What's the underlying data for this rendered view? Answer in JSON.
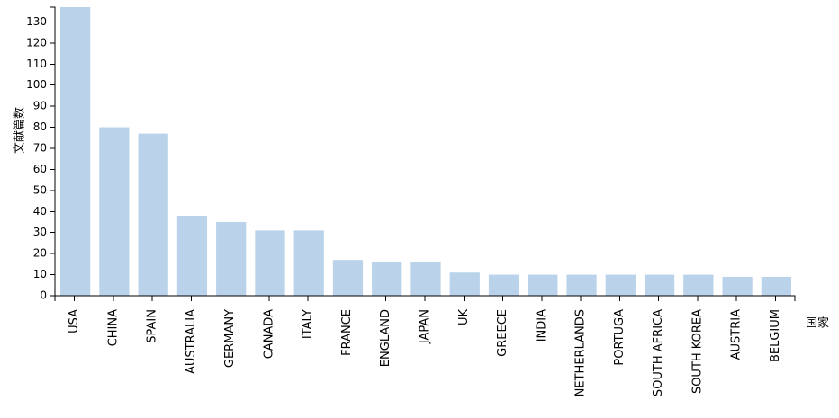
{
  "chart_data": {
    "type": "bar",
    "y_label": "文献篇数",
    "x_label": "国家",
    "categories": [
      "USA",
      "CHINA",
      "SPAIN",
      "AUSTRALIA",
      "GERMANY",
      "CANADA",
      "ITALY",
      "FRANCE",
      "ENGLAND",
      "JAPAN",
      "UK",
      "GREECE",
      "INDIA",
      "NETHERLANDS",
      "PORTUGA",
      "SOUTH AFRICA",
      "SOUTH KOREA",
      "AUSTRIA",
      "BELGIUM"
    ],
    "values": [
      137,
      80,
      77,
      38,
      35,
      31,
      31,
      17,
      16,
      16,
      11,
      10,
      10,
      10,
      10,
      10,
      10,
      9,
      9
    ],
    "color": "#bad3ea",
    "ylim": [
      0,
      137
    ],
    "yticks": [
      0,
      10,
      20,
      30,
      40,
      50,
      60,
      70,
      80,
      90,
      100,
      110,
      120,
      130
    ]
  }
}
